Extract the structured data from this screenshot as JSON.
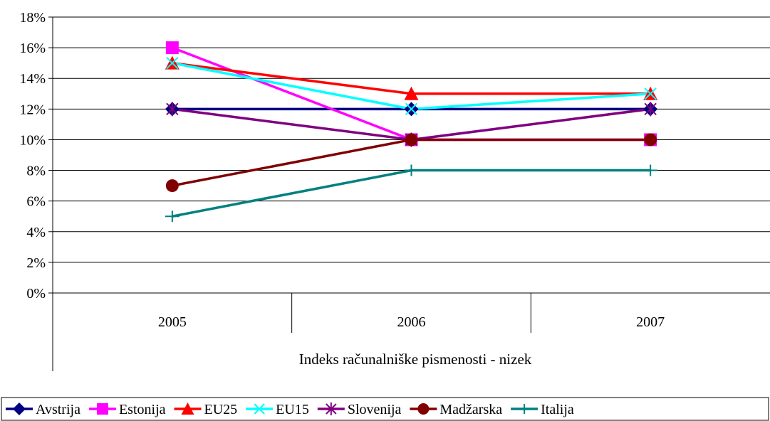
{
  "chart_data": {
    "type": "line",
    "title": "",
    "xlabel": "Indeks računalniške pismenosti - nizek",
    "ylabel": "",
    "categories": [
      "2005",
      "2006",
      "2007"
    ],
    "y_ticks": [
      "0%",
      "2%",
      "4%",
      "6%",
      "8%",
      "10%",
      "12%",
      "14%",
      "16%",
      "18%"
    ],
    "ylim": [
      0,
      18
    ],
    "y_unit": "%",
    "grid": "horizontal major gridlines",
    "legend_position": "bottom",
    "series": [
      {
        "name": "Avstrija",
        "values": [
          12,
          12,
          12
        ],
        "color": "#000080",
        "marker": "diamond"
      },
      {
        "name": "Estonija",
        "values": [
          16,
          10,
          10
        ],
        "color": "#FF00FF",
        "marker": "square"
      },
      {
        "name": "EU25",
        "values": [
          15,
          13,
          13
        ],
        "color": "#FF0000",
        "marker": "triangle"
      },
      {
        "name": "EU15",
        "values": [
          15,
          12,
          13
        ],
        "color": "#00FFFF",
        "marker": "x"
      },
      {
        "name": "Slovenija",
        "values": [
          12,
          10,
          12
        ],
        "color": "#800080",
        "marker": "star"
      },
      {
        "name": "Madžarska",
        "values": [
          7,
          10,
          10
        ],
        "color": "#800000",
        "marker": "circle"
      },
      {
        "name": "Italija",
        "values": [
          5,
          8,
          8
        ],
        "color": "#008080",
        "marker": "plus"
      }
    ]
  }
}
